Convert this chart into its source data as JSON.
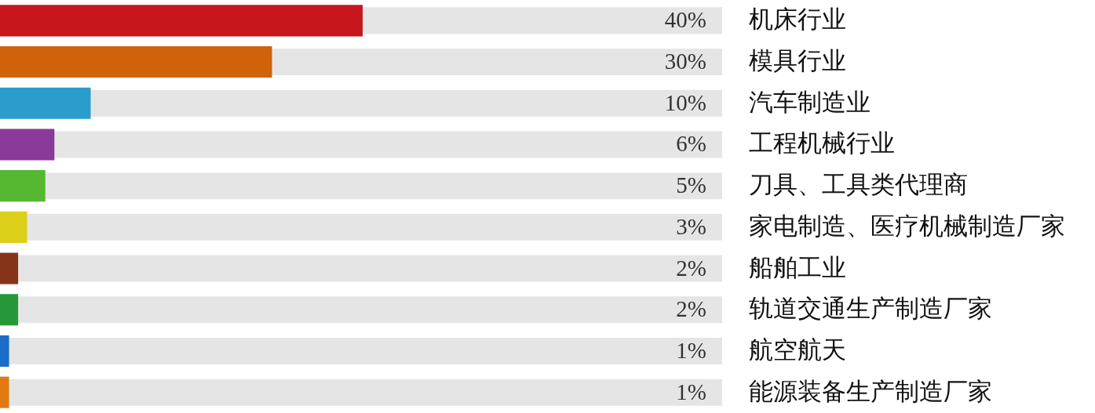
{
  "chart_data": {
    "type": "bar",
    "orientation": "horizontal",
    "categories": [
      "机床行业",
      "模具行业",
      "汽车制造业",
      "工程机械行业",
      "刀具、工具类代理商",
      "家电制造、医疗机械制造厂家",
      "船舶工业",
      "轨道交通生产制造厂家",
      "航空航天",
      "能源装备生产制造厂家"
    ],
    "values": [
      40,
      30,
      10,
      6,
      5,
      3,
      2,
      2,
      1,
      1
    ],
    "colors": [
      "#c8161d",
      "#d0620a",
      "#2a9dcc",
      "#8a3a98",
      "#55b830",
      "#dccf1a",
      "#863418",
      "#27983a",
      "#1b6cc8",
      "#e07a10"
    ],
    "value_labels": [
      "40%",
      "30%",
      "10%",
      "6%",
      "5%",
      "3%",
      "2%",
      "2%",
      "1%",
      "1%"
    ],
    "tick_labels": "y"
  }
}
